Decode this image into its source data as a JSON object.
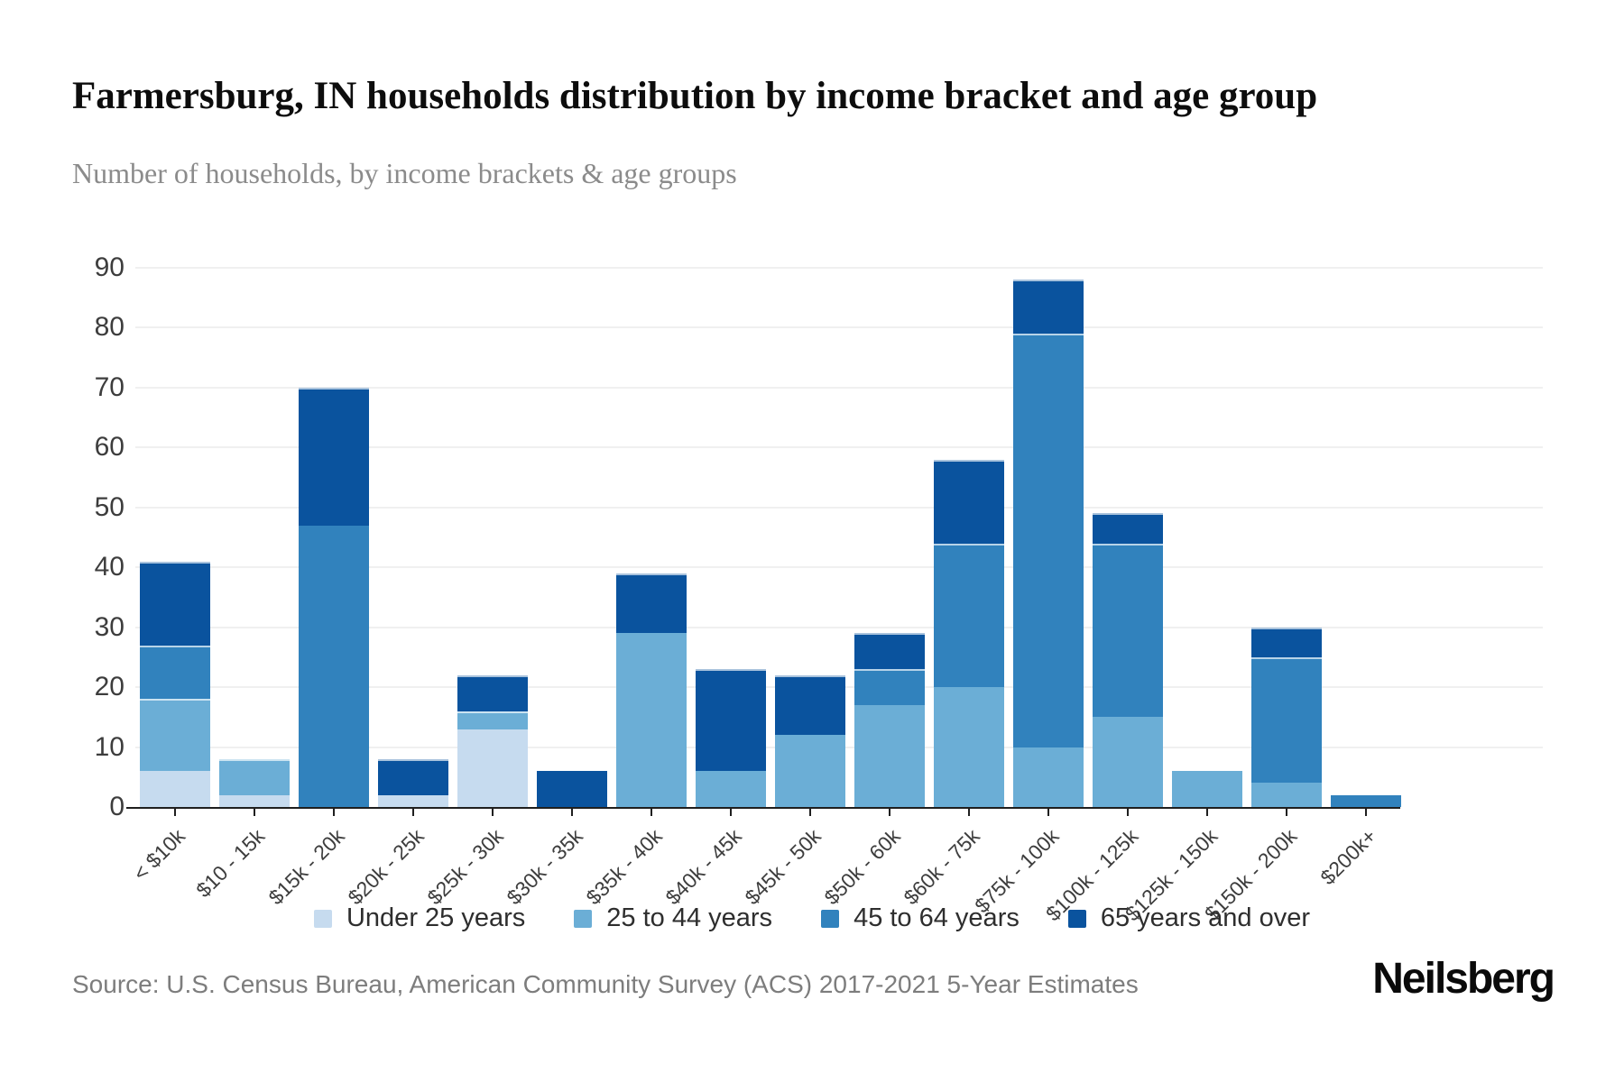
{
  "header": {
    "title": "Farmersburg, IN households distribution by income bracket and age group",
    "subtitle": "Number of households, by income brackets & age groups"
  },
  "footer": {
    "source": "Source: U.S. Census Bureau, American Community Survey (ACS) 2017-2021 5-Year Estimates",
    "brand": "Neilsberg"
  },
  "chart_data": {
    "type": "bar",
    "stacked": true,
    "title": "Farmersburg, IN households distribution by income bracket and age group",
    "subtitle": "Number of households, by income brackets & age groups",
    "xlabel": "",
    "ylabel": "Number of households",
    "ylim": [
      0,
      90
    ],
    "yticks": [
      0,
      10,
      20,
      30,
      40,
      50,
      60,
      70,
      80,
      90
    ],
    "grid": "horizontal",
    "legend_position": "bottom",
    "categories": [
      "< $10k",
      "$10 - 15k",
      "$15k - 20k",
      "$20k - 25k",
      "$25k - 30k",
      "$30k - 35k",
      "$35k - 40k",
      "$40k - 45k",
      "$45k - 50k",
      "$50k - 60k",
      "$60k - 75k",
      "$75k - 100k",
      "$100k - 125k",
      "$125k - 150k",
      "$150k - 200k",
      "$200k+"
    ],
    "series": [
      {
        "name": "Under 25 years",
        "color": "#c6dbef",
        "values": [
          6,
          2,
          0,
          2,
          13,
          0,
          0,
          0,
          0,
          0,
          0,
          0,
          0,
          0,
          0,
          0
        ]
      },
      {
        "name": "25 to 44 years",
        "color": "#6baed6",
        "values": [
          12,
          6,
          0,
          0,
          3,
          0,
          29,
          6,
          12,
          17,
          20,
          10,
          15,
          6,
          4,
          0
        ]
      },
      {
        "name": "45 to 64 years",
        "color": "#3182bd",
        "values": [
          9,
          0,
          47,
          0,
          0,
          0,
          0,
          0,
          0,
          6,
          24,
          69,
          29,
          0,
          21,
          2
        ]
      },
      {
        "name": "65 years and over",
        "color": "#0a539e",
        "values": [
          14,
          0,
          23,
          6,
          6,
          6,
          10,
          17,
          10,
          6,
          14,
          9,
          5,
          0,
          5,
          0
        ]
      }
    ],
    "bar_totals": [
      41,
      8,
      70,
      8,
      22,
      6,
      39,
      23,
      22,
      29,
      58,
      88,
      49,
      6,
      30,
      2
    ]
  }
}
